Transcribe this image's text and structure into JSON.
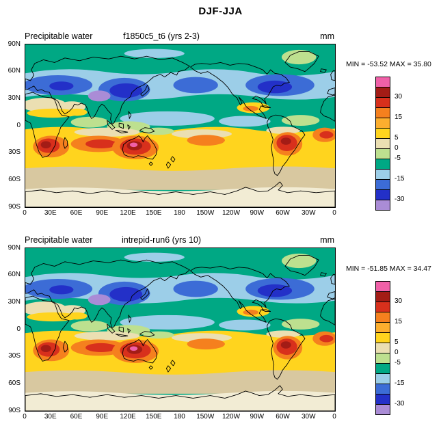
{
  "title": "DJF-JJA",
  "panels": [
    {
      "field_label": "Precipitable water",
      "case_label": "f1850c5_t6 (yrs 2-3)",
      "units": "mm",
      "stats_text": "MIN = -53.52 MAX =  35.80"
    },
    {
      "field_label": "Precipitable water",
      "case_label": "intrepid-run6 (yrs 10)",
      "units": "mm",
      "stats_text": "MIN = -51.85 MAX =  34.47"
    }
  ],
  "axes": {
    "lat_ticks": [
      "90N",
      "60N",
      "30N",
      "0",
      "30S",
      "60S",
      "90S"
    ],
    "lon_ticks": [
      "0",
      "30E",
      "60E",
      "90E",
      "120E",
      "150E",
      "180",
      "150W",
      "120W",
      "90W",
      "60W",
      "30W",
      "0"
    ]
  },
  "colorbar": {
    "colors": [
      "#F060A8",
      "#A31C16",
      "#D8301C",
      "#F5801E",
      "#FCAE2E",
      "#FFD41E",
      "#EBDFB2",
      "#BDE08F",
      "#00A884",
      "#9CCEE8",
      "#3C6CD6",
      "#2330C8",
      "#AA8CD6"
    ],
    "labels": [
      {
        "value": "30",
        "boundary_index": 2
      },
      {
        "value": "15",
        "boundary_index": 4
      },
      {
        "value": "5",
        "boundary_index": 6
      },
      {
        "value": "0",
        "boundary_index": 7
      },
      {
        "value": "-5",
        "boundary_index": 8
      },
      {
        "value": "-15",
        "boundary_index": 10
      },
      {
        "value": "-30",
        "boundary_index": 12
      }
    ]
  },
  "palette": {
    "pink": "#F060A8",
    "dark_red": "#A31C16",
    "red": "#D8301C",
    "orange": "#F5801E",
    "amber": "#FCAE2E",
    "yellow": "#FFD41E",
    "beige": "#EBDFB2",
    "light_green": "#BDE08F",
    "teal": "#00A884",
    "light_blue": "#9CCEE8",
    "blue": "#3C6CD6",
    "dark_blue": "#2330C8",
    "violet": "#AA8CD6",
    "tan": "#D8C8A0",
    "cream": "#F2ECD4",
    "coast": "#000000"
  },
  "chart_data": {
    "type": "heatmap",
    "subtype": "filled-contour-global-difference-maps",
    "title": "DJF-JJA",
    "variable": "Precipitable water",
    "units": "mm",
    "projection": "cylindrical equidistant, lon 0E eastward to 0E, lat 90S-90N",
    "panels": [
      {
        "case": "f1850c5_t6 (yrs 2-3)",
        "min": -53.52,
        "max": 35.8
      },
      {
        "case": "intrepid-run6 (yrs 10)",
        "min": -51.85,
        "max": 34.47
      }
    ],
    "labeled_contour_levels": [
      30,
      15,
      5,
      0,
      -5,
      -15,
      -30
    ],
    "colorbar_colors_top_to_bottom": [
      "#F060A8",
      "#A31C16",
      "#D8301C",
      "#F5801E",
      "#FCAE2E",
      "#FFD41E",
      "#EBDFB2",
      "#BDE08F",
      "#00A884",
      "#9CCEE8",
      "#3C6CD6",
      "#2330C8",
      "#AA8CD6"
    ],
    "lat_ticks": [
      "90N",
      "60N",
      "30N",
      "0",
      "30S",
      "60S",
      "90S"
    ],
    "lon_ticks": [
      "0",
      "30E",
      "60E",
      "90E",
      "120E",
      "150E",
      "180",
      "150W",
      "120W",
      "90W",
      "60W",
      "30W",
      "0"
    ],
    "pattern_summary": "Negative (blue/purple) DJF-JJA differences across northern mid-latitudes, strongest over central-east Asia, the Tibetan Plateau and the North Atlantic/North America; positive (yellow-orange-red) differences across the southern subtropics with maxima over southern Africa, Australia and South America; near-zero beige/tan over high southern latitudes and Antarctica."
  }
}
